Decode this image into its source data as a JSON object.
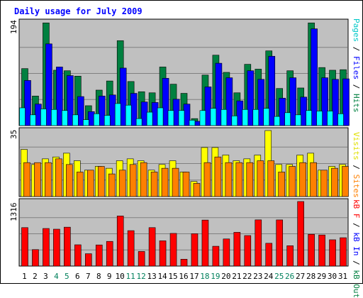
{
  "chart_data": {
    "type": "bar",
    "title": "Daily usage for July 2009",
    "categories": [
      "1",
      "2",
      "3",
      "4",
      "5",
      "6",
      "7",
      "8",
      "9",
      "10",
      "11",
      "12",
      "13",
      "14",
      "15",
      "16",
      "17",
      "18",
      "19",
      "20",
      "21",
      "22",
      "23",
      "24",
      "25",
      "26",
      "27",
      "28",
      "29",
      "30",
      "31"
    ],
    "weekend_categories": [
      "4",
      "5",
      "11",
      "12",
      "18",
      "19",
      "25",
      "26"
    ],
    "panels": [
      {
        "ymax_label": "194",
        "ymax": 194,
        "right_label": {
          "pages": "Pages",
          "sep1": " / ",
          "files": "Files",
          "sep2": " / ",
          "hits": "Hits"
        },
        "series": [
          {
            "name": "Hits",
            "color": "#008040",
            "values": [
              106,
              55,
              191,
              103,
              102,
              92,
              37,
              66,
              83,
              158,
              82,
              63,
              61,
              109,
              77,
              60,
              13,
              94,
              131,
              99,
              61,
              114,
              105,
              139,
              69,
              102,
              70,
              191,
              108,
              103,
              104
            ]
          },
          {
            "name": "Files",
            "color": "#0000ff",
            "values": [
              84,
              40,
              152,
              109,
              93,
              54,
              26,
              55,
              57,
              107,
              60,
              44,
              43,
              88,
              49,
              40,
              8,
              72,
              116,
              89,
              46,
              102,
              86,
              129,
              51,
              89,
              53,
              180,
              89,
              86,
              87
            ]
          },
          {
            "name": "Pages",
            "color": "#00ffff",
            "values": [
              33,
              20,
              31,
              30,
              28,
              20,
              11,
              22,
              19,
              41,
              38,
              13,
              25,
              33,
              28,
              28,
              10,
              28,
              32,
              30,
              18,
              30,
              30,
              32,
              17,
              24,
              20,
              28,
              27,
              27,
              22
            ]
          }
        ]
      },
      {
        "ymax_label": "35",
        "ymax": 35,
        "right_label": {
          "visits": "Visits",
          "sep1": " / ",
          "sites": "Sites"
        },
        "series": [
          {
            "name": "Visits",
            "color": "#ffff00",
            "values": [
              25,
              17,
              20,
              21,
              23,
              19,
              14,
              16,
              15,
              19,
              20,
              19,
              14,
              17,
              19,
              13,
              8,
              26,
              26,
              22,
              19,
              20,
              22,
              35,
              17,
              17,
              22,
              23,
              14,
              16,
              17
            ]
          },
          {
            "name": "Sites",
            "color": "#ff8000",
            "values": [
              18,
              18,
              18,
              20,
              17,
              13,
              14,
              16,
              12,
              14,
              17,
              18,
              13,
              15,
              15,
              13,
              7,
              18,
              21,
              18,
              18,
              18,
              19,
              19,
              13,
              16,
              18,
              18,
              14,
              15,
              16
            ]
          }
        ]
      },
      {
        "ymax_label": "1316",
        "ymax": 1316,
        "right_label": {
          "kbf": "kB F",
          "sep1": " / ",
          "kbin": "kB In",
          "sep2": " / ",
          "kbout": "kB Out"
        },
        "series": [
          {
            "name": "kB F",
            "color": "#ff0000",
            "values": [
              784,
              336,
              766,
              752,
              793,
              434,
              252,
              431,
              503,
              1021,
              722,
              298,
              784,
              515,
              666,
              140,
              660,
              938,
              404,
              553,
              688,
              622,
              942,
              465,
              941,
              415,
              1316,
              648,
              634,
              536,
              578
            ]
          }
        ]
      }
    ]
  },
  "colors": {
    "plot_bg": "#c0c0c0",
    "frame_bg": "#ffffff",
    "title": "#0000ff",
    "axis_label": "#000000",
    "weekend_label": "#00805c",
    "hits": "#008040",
    "files": "#0000ff",
    "pages": "#00ffff",
    "visits": "#ffff00",
    "sites": "#ff8000",
    "kbf": "#ff0000",
    "kbin": "#0000ff",
    "kbout": "#008040"
  }
}
